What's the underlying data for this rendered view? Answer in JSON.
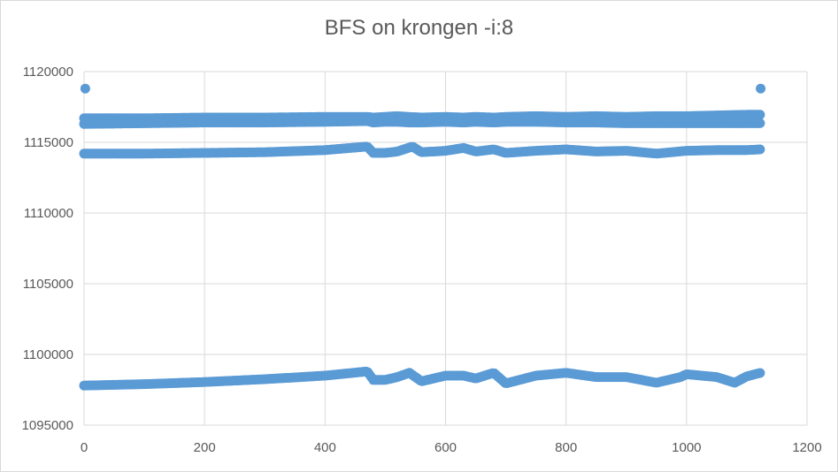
{
  "chart_data": {
    "type": "scatter",
    "title": "BFS on krongen -i:8",
    "xlabel": "",
    "ylabel": "",
    "xlim": [
      0,
      1200
    ],
    "ylim": [
      1095000,
      1120000
    ],
    "x_ticks": [
      "0",
      "200",
      "400",
      "600",
      "800",
      "1000",
      "1200"
    ],
    "y_ticks": [
      "1095000",
      "1100000",
      "1105000",
      "1110000",
      "1115000",
      "1120000"
    ],
    "grid": true,
    "legend": "none",
    "marker_color": "#5b9bd5",
    "bands": [
      {
        "x": [
          0,
          100,
          200,
          300,
          400,
          470,
          480,
          500,
          520,
          540,
          560,
          600,
          630,
          650,
          680,
          700,
          750,
          800,
          850,
          900,
          950,
          1000,
          1050,
          1100,
          1123
        ],
        "y": [
          1116700,
          1116700,
          1116750,
          1116750,
          1116800,
          1116800,
          1116750,
          1116800,
          1116850,
          1116800,
          1116750,
          1116800,
          1116750,
          1116800,
          1116750,
          1116800,
          1116850,
          1116800,
          1116850,
          1116800,
          1116850,
          1116850,
          1116900,
          1116950,
          1116950
        ]
      },
      {
        "x": [
          0,
          100,
          200,
          300,
          400,
          470,
          480,
          500,
          520,
          540,
          560,
          600,
          630,
          650,
          680,
          700,
          750,
          800,
          850,
          900,
          950,
          1000,
          1050,
          1100,
          1123
        ],
        "y": [
          1116300,
          1116350,
          1116400,
          1116400,
          1116450,
          1116500,
          1116400,
          1116450,
          1116450,
          1116400,
          1116400,
          1116450,
          1116400,
          1116450,
          1116400,
          1116450,
          1116450,
          1116400,
          1116400,
          1116350,
          1116350,
          1116350,
          1116350,
          1116350,
          1116350
        ]
      },
      {
        "x": [
          0,
          100,
          200,
          300,
          400,
          470,
          480,
          500,
          520,
          545,
          560,
          600,
          630,
          650,
          680,
          700,
          750,
          800,
          850,
          900,
          950,
          1000,
          1050,
          1100,
          1123
        ],
        "y": [
          1114200,
          1114200,
          1114250,
          1114300,
          1114450,
          1114700,
          1114250,
          1114250,
          1114350,
          1114700,
          1114300,
          1114400,
          1114600,
          1114350,
          1114500,
          1114250,
          1114400,
          1114500,
          1114350,
          1114400,
          1114200,
          1114400,
          1114450,
          1114450,
          1114500
        ]
      },
      {
        "x": [
          0,
          100,
          200,
          300,
          400,
          470,
          480,
          500,
          520,
          540,
          560,
          600,
          630,
          650,
          680,
          700,
          750,
          800,
          850,
          900,
          950,
          990,
          1000,
          1050,
          1080,
          1100,
          1123
        ],
        "y": [
          1097800,
          1097900,
          1098050,
          1098250,
          1098500,
          1098800,
          1098200,
          1098200,
          1098400,
          1098700,
          1098100,
          1098500,
          1098500,
          1098300,
          1098700,
          1097950,
          1098500,
          1098700,
          1098400,
          1098400,
          1098000,
          1098400,
          1098600,
          1098400,
          1098000,
          1098450,
          1098700
        ]
      }
    ],
    "outliers": [
      {
        "x": 2,
        "y": 1118800
      },
      {
        "x": 1123,
        "y": 1118800
      }
    ]
  }
}
